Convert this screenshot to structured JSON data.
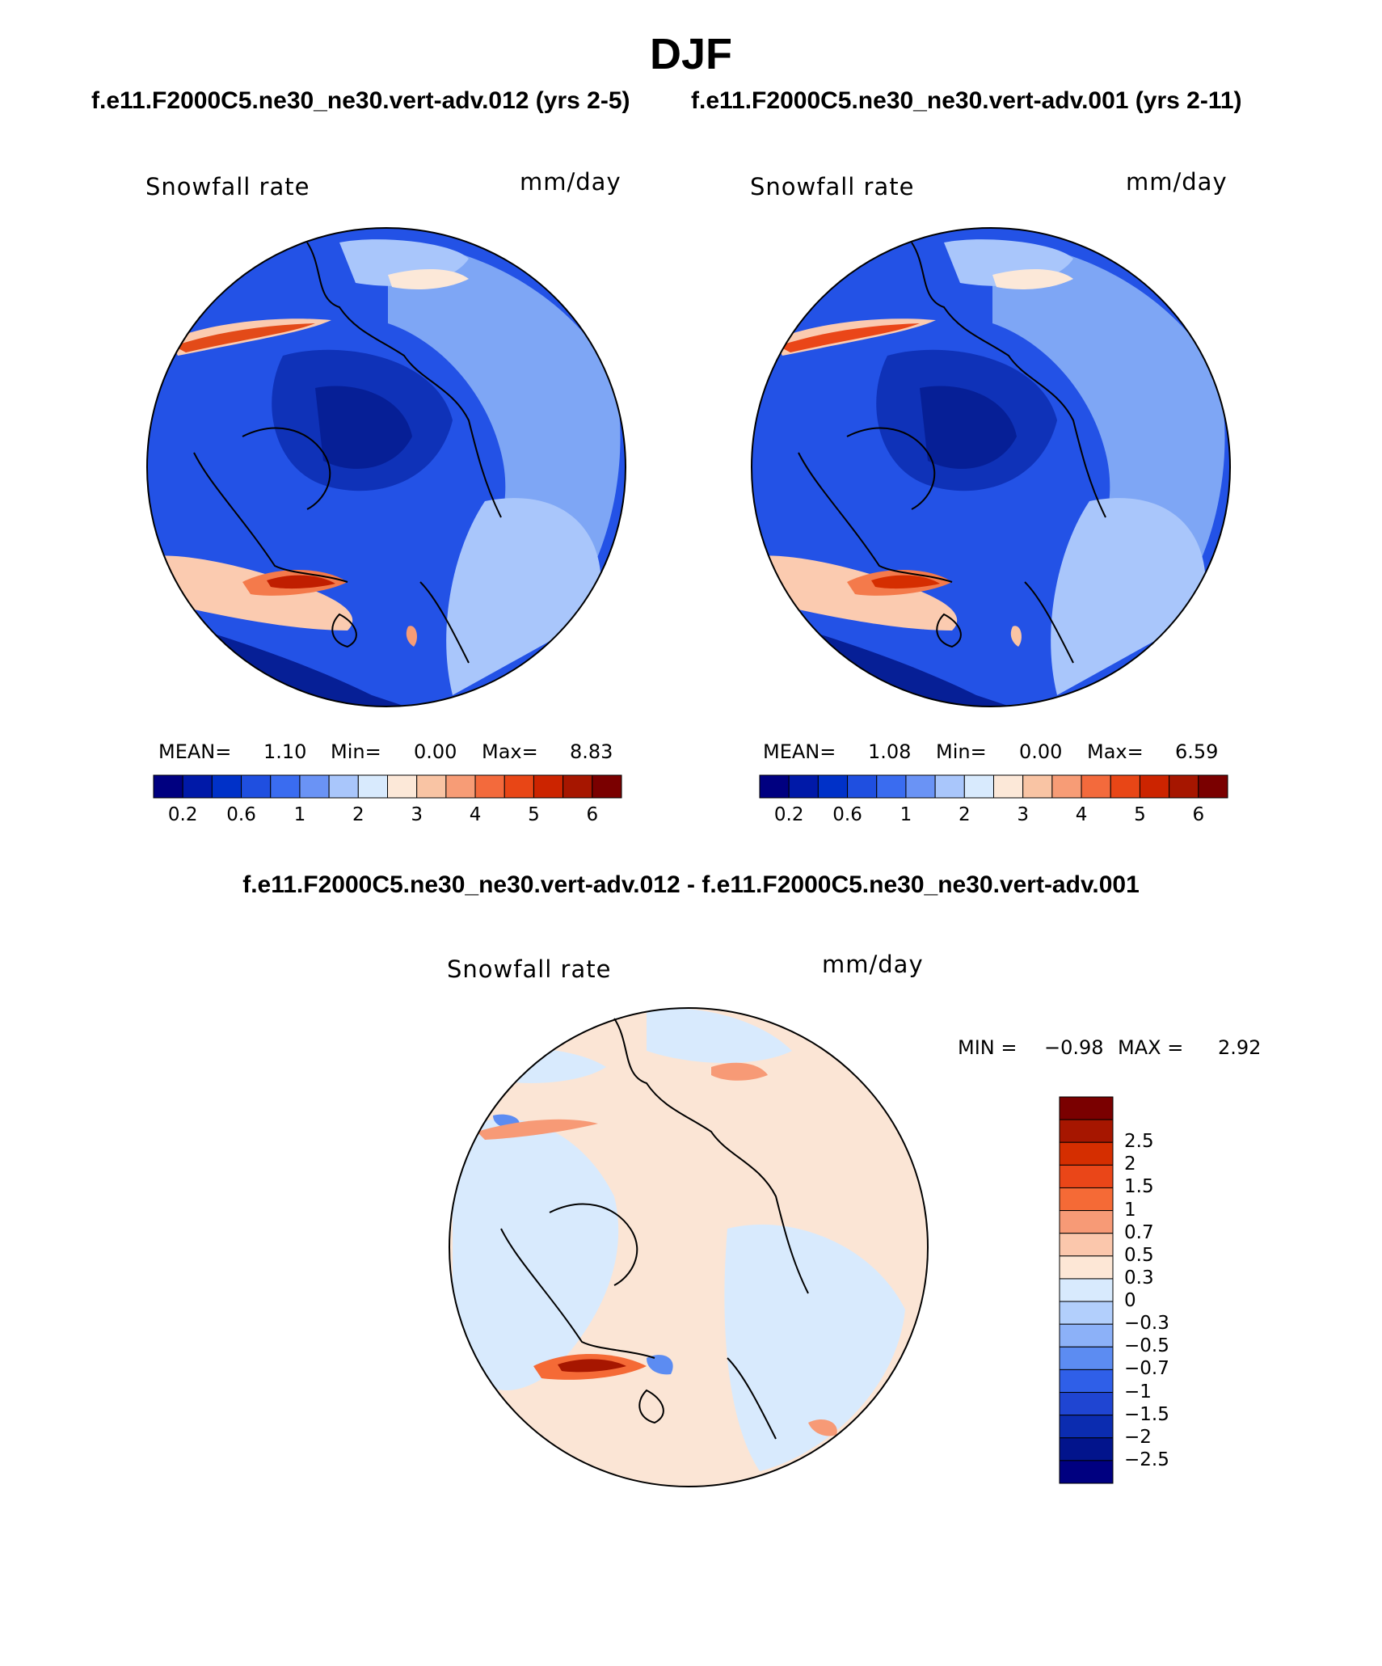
{
  "title": "DJF",
  "case_titles": {
    "left": "f.e11.F2000C5.ne30_ne30.vert-adv.012 (yrs 2-5)",
    "right": "f.e11.F2000C5.ne30_ne30.vert-adv.001 (yrs 2-11)",
    "diff": "f.e11.F2000C5.ne30_ne30.vert-adv.012 - f.e11.F2000C5.ne30_ne30.vert-adv.001"
  },
  "panels": [
    {
      "id": "left",
      "variable": "Snowfall rate",
      "units": "mm/day",
      "stats": {
        "mean_label": "MEAN=",
        "mean": "1.10",
        "min_label": "Min=",
        "min": "0.00",
        "max_label": "Max=",
        "max": "8.83"
      }
    },
    {
      "id": "right",
      "variable": "Snowfall rate",
      "units": "mm/day",
      "stats": {
        "mean_label": "MEAN=",
        "mean": "1.08",
        "min_label": "Min=",
        "min": "0.00",
        "max_label": "Max=",
        "max": "6.59"
      }
    },
    {
      "id": "diff",
      "variable": "Snowfall rate",
      "units": "mm/day",
      "stats": {
        "min_label": "MIN =",
        "min": "−0.98",
        "max_label": "MAX =",
        "max": "2.92"
      }
    }
  ],
  "colorbar_main": {
    "colors": [
      "#000080",
      "#0019a8",
      "#0031c8",
      "#1f4fe0",
      "#3a6cf0",
      "#6a93f5",
      "#a9c6fb",
      "#d8eafd",
      "#fce8d8",
      "#f9c4a4",
      "#f79c76",
      "#f36a3c",
      "#e84616",
      "#cc2400",
      "#a61600",
      "#7a0000"
    ],
    "tick_labels": [
      "0.2",
      "0.6",
      "1",
      "2",
      "3",
      "4",
      "5",
      "6"
    ]
  },
  "colorbar_diff": {
    "colors": [
      "#7a0000",
      "#a61600",
      "#d52e00",
      "#ea4618",
      "#f56a36",
      "#f79a76",
      "#fbc7ac",
      "#fde7d6",
      "#d8eafd",
      "#b2cffc",
      "#8cb1f8",
      "#5c8cf2",
      "#2f5fe8",
      "#1f45d2",
      "#0b2cb0",
      "#02148c",
      "#000080"
    ],
    "tick_labels": [
      "2.5",
      "2",
      "1.5",
      "1",
      "0.7",
      "0.5",
      "0.3",
      "0",
      "−0.3",
      "−0.5",
      "−0.7",
      "−1",
      "−1.5",
      "−2",
      "−2.5"
    ]
  },
  "map_colors": {
    "land_outline": "#000000",
    "main_base": "#2352e6",
    "diff_base": "#fbe5d5"
  }
}
